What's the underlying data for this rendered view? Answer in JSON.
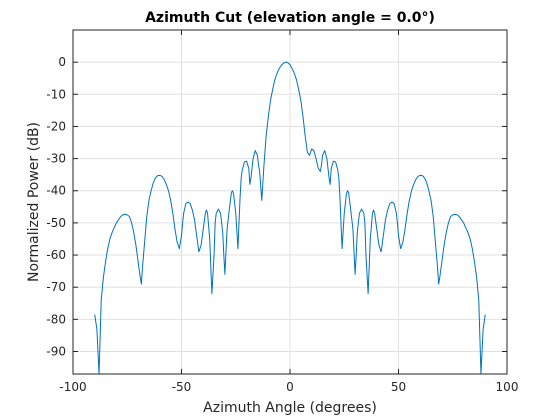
{
  "chart_data": {
    "type": "line",
    "title": "Azimuth Cut (elevation angle = 0.0°)",
    "xlabel": "Azimuth Angle (degrees)",
    "ylabel": "Normalized Power (dB)",
    "xlim": [
      -100,
      100
    ],
    "ylim": [
      -97,
      10
    ],
    "xticks": [
      -100,
      -50,
      0,
      50,
      100
    ],
    "xtick_labels": [
      "-100",
      "-50",
      "0",
      "50",
      "100"
    ],
    "yticks": [
      0,
      -10,
      -20,
      -30,
      -40,
      -50,
      -60,
      -70,
      -80,
      -90
    ],
    "ytick_labels": [
      "0",
      "-10",
      "-20",
      "-30",
      "-40",
      "-50",
      "-60",
      "-70",
      "-80",
      "-90"
    ],
    "grid": true,
    "series": [
      {
        "color": "#0072bd",
        "x": [
          -90,
          -89,
          -88,
          -87,
          -86,
          -85,
          -84,
          -83,
          -82,
          -81,
          -80,
          -79,
          -78,
          -77,
          -76,
          -75,
          -74,
          -73,
          -72,
          -71,
          -70,
          -69,
          -68.5,
          -68,
          -67,
          -66,
          -65,
          -64,
          -63,
          -62,
          -61,
          -60,
          -59,
          -58,
          -57,
          -56,
          -55,
          -54,
          -53,
          -52,
          -51,
          -50,
          -49.5,
          -49,
          -48,
          -47,
          -46,
          -45,
          -44,
          -43,
          -42,
          -41,
          -40,
          -39,
          -38.5,
          -38,
          -37,
          -36,
          -35,
          -34.5,
          -34,
          -33,
          -32,
          -31,
          -30.5,
          -30,
          -29,
          -28,
          -27,
          -26.5,
          -26,
          -25,
          -24,
          -23,
          -22.5,
          -22,
          -21,
          -20,
          -19,
          -18.5,
          -18,
          -17,
          -16,
          -15,
          -14.5,
          -14,
          -13,
          -12,
          -11,
          -10,
          -9,
          -8,
          -7,
          -6,
          -5,
          -4,
          -3,
          -2,
          -1,
          0,
          1,
          2,
          3,
          4,
          5,
          6,
          7,
          8,
          9,
          10,
          11,
          12,
          13,
          14,
          14.5,
          15,
          16,
          17,
          18,
          18.5,
          19,
          20,
          21,
          22,
          22.5,
          23,
          24,
          25,
          26,
          26.5,
          27,
          28,
          29,
          30,
          30.5,
          31,
          32,
          33,
          34,
          34.5,
          35,
          36,
          37,
          38,
          38.5,
          39,
          40,
          41,
          42,
          43,
          44,
          45,
          46,
          47,
          48,
          49,
          49.5,
          50,
          51,
          52,
          53,
          54,
          55,
          56,
          57,
          58,
          59,
          60,
          61,
          62,
          63,
          64,
          65,
          66,
          67,
          68,
          68.5,
          69,
          70,
          71,
          72,
          73,
          74,
          75,
          76,
          77,
          78,
          79,
          80,
          81,
          82,
          83,
          84,
          85,
          86,
          87,
          88,
          89,
          90
        ],
        "y": [
          -78.5,
          -83,
          -97,
          -74,
          -67,
          -62,
          -58,
          -55,
          -53,
          -51.5,
          -50,
          -49,
          -48,
          -47.5,
          -47.3,
          -47.5,
          -48,
          -50,
          -53,
          -57,
          -62,
          -67,
          -69,
          -64,
          -56,
          -48,
          -43,
          -40,
          -37.5,
          -36,
          -35.3,
          -35.2,
          -35.5,
          -36.5,
          -38,
          -40,
          -43,
          -47,
          -52,
          -56,
          -58,
          -54,
          -50,
          -47,
          -44,
          -43.5,
          -44,
          -46,
          -49,
          -54,
          -59,
          -57,
          -52,
          -47,
          -46,
          -47,
          -55,
          -72,
          -60,
          -50,
          -47,
          -45.7,
          -47,
          -53,
          -60,
          -66,
          -52,
          -46,
          -40.5,
          -40,
          -41,
          -47,
          -58,
          -42,
          -36,
          -33.5,
          -31,
          -30.8,
          -33,
          -38,
          -36,
          -30,
          -27.5,
          -29,
          -32,
          -34,
          -43,
          -32,
          -23,
          -17,
          -12,
          -8.5,
          -5.5,
          -3.5,
          -2,
          -1,
          -0.3,
          0,
          -0.2,
          -0.8,
          -2,
          -3.5,
          -5.5,
          -8.5,
          -12,
          -17,
          -23,
          -28,
          -29,
          -27,
          -27.5,
          -30,
          -33,
          -34,
          -32,
          -29,
          -27.5,
          -30,
          -36,
          -38,
          -33,
          -30.8,
          -31,
          -33.5,
          -36,
          -42,
          -58,
          -47,
          -41,
          -40,
          -40.5,
          -46,
          -52,
          -66,
          -60,
          -53,
          -47,
          -45.7,
          -47,
          -50,
          -60,
          -72,
          -55,
          -47,
          -46,
          -47,
          -52,
          -57,
          -59,
          -54,
          -49,
          -46,
          -44,
          -43.5,
          -44,
          -47,
          -50,
          -54,
          -58,
          -56,
          -52,
          -47,
          -43,
          -40,
          -38,
          -36.5,
          -35.5,
          -35.2,
          -35.3,
          -36,
          -37.5,
          -40,
          -43,
          -48,
          -56,
          -64,
          -69,
          -67,
          -62,
          -57,
          -53,
          -50,
          -48,
          -47.5,
          -47.3,
          -47.5,
          -48,
          -49,
          -50,
          -51.5,
          -53,
          -55,
          -58,
          -62,
          -67,
          -74,
          -97,
          -83,
          -78.5
        ]
      }
    ]
  }
}
